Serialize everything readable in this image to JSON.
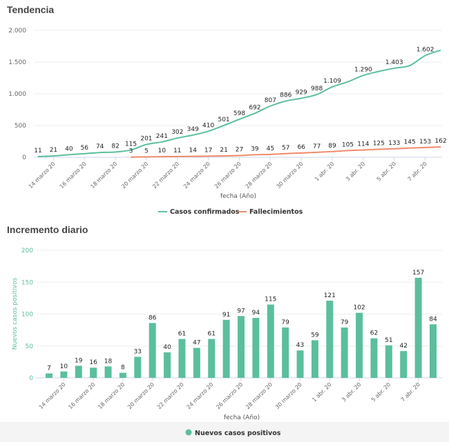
{
  "sections": {
    "trend_title": "Tendencia",
    "daily_title": "Incremento diario"
  },
  "colors": {
    "confirmed": "#5bbf9c",
    "deaths": "#f08a6a",
    "bars": "#5bbf9c"
  },
  "chart_data": [
    {
      "type": "line",
      "title": "Tendencia",
      "xlabel": "fecha (Año)",
      "ylabel": "",
      "ylim": [
        0,
        2000
      ],
      "yticks": [
        "0",
        "500",
        "1.000",
        "1.500",
        "2.000"
      ],
      "ytick_values": [
        0,
        500,
        1000,
        1500,
        2000
      ],
      "x": [
        "13 marzo 20",
        "14 marzo 20",
        "15 marzo 20",
        "16 marzo 20",
        "17 marzo 20",
        "18 marzo 20",
        "19 marzo 20",
        "20 marzo 20",
        "21 marzo 20",
        "22 marzo 20",
        "23 marzo 20",
        "24 marzo 20",
        "25 marzo 20",
        "26 marzo 20",
        "27 marzo 20",
        "28 marzo 20",
        "29 marzo 20",
        "30 marzo 20",
        "31 marzo 20",
        "1 abr. 20",
        "2 abr. 20",
        "3 abr. 20",
        "4 abr. 20",
        "5 abr. 20",
        "6 abr. 20",
        "7 abr. 20",
        "8 abr. 20"
      ],
      "xtick_labels": [
        "14 marzo 20",
        "16 marzo 20",
        "18 marzo 20",
        "20 marzo 20",
        "22 marzo 20",
        "24 marzo 20",
        "26 marzo 20",
        "28 marzo 20",
        "30 marzo 20",
        "1 abr. 20",
        "3 abr. 20",
        "5 abr. 20",
        "7 abr. 20"
      ],
      "grid": true,
      "legend_position": "bottom",
      "series": [
        {
          "name": "Casos confirmados",
          "values": [
            11,
            21,
            40,
            56,
            74,
            82,
            115,
            201,
            241,
            302,
            349,
            410,
            501,
            598,
            692,
            807,
            886,
            929,
            988,
            1109,
            1188,
            1290,
            1352,
            1403,
            1445,
            1602,
            1686
          ],
          "labels": [
            "11",
            "21",
            "40",
            "56",
            "74",
            "82",
            "115",
            "201",
            "241",
            "302",
            "349",
            "410",
            "501",
            "598",
            "692",
            "807",
            "886",
            "929",
            "988",
            "1.109",
            "",
            "1.290",
            "",
            "1.403",
            "",
            "1.602",
            ""
          ]
        },
        {
          "name": "Fallecimientos",
          "values": [
            null,
            null,
            null,
            null,
            null,
            null,
            3,
            5,
            10,
            11,
            14,
            17,
            21,
            27,
            39,
            45,
            57,
            66,
            77,
            89,
            105,
            114,
            125,
            133,
            145,
            153,
            162
          ],
          "labels": [
            "",
            "",
            "",
            "",
            "",
            "",
            "3",
            "5",
            "10",
            "11",
            "14",
            "17",
            "21",
            "27",
            "39",
            "45",
            "57",
            "66",
            "77",
            "89",
            "105",
            "114",
            "125",
            "133",
            "145",
            "153",
            "162"
          ]
        }
      ]
    },
    {
      "type": "bar",
      "title": "Incremento diario",
      "xlabel": "fecha (Año)",
      "ylabel": "Nuevos casos positivos",
      "ylim": [
        0,
        200
      ],
      "yticks": [
        "0",
        "50",
        "100",
        "150",
        "200"
      ],
      "ytick_values": [
        0,
        50,
        100,
        150,
        200
      ],
      "categories": [
        "13 marzo 20",
        "14 marzo 20",
        "15 marzo 20",
        "16 marzo 20",
        "17 marzo 20",
        "18 marzo 20",
        "19 marzo 20",
        "20 marzo 20",
        "21 marzo 20",
        "22 marzo 20",
        "23 marzo 20",
        "24 marzo 20",
        "25 marzo 20",
        "26 marzo 20",
        "27 marzo 20",
        "28 marzo 20",
        "29 marzo 20",
        "30 marzo 20",
        "31 marzo 20",
        "1 abr. 20",
        "2 abr. 20",
        "3 abr. 20",
        "4 abr. 20",
        "5 abr. 20",
        "6 abr. 20",
        "7 abr. 20",
        "8 abr. 20"
      ],
      "xtick_labels": [
        "14 marzo 20",
        "16 marzo 20",
        "18 marzo 20",
        "20 marzo 20",
        "22 marzo 20",
        "24 marzo 20",
        "26 marzo 20",
        "28 marzo 20",
        "30 marzo 20",
        "1 abr. 20",
        "3 abr. 20",
        "5 abr. 20",
        "7 abr. 20"
      ],
      "grid": true,
      "legend_position": "bottom",
      "series": [
        {
          "name": "Nuevos casos positivos",
          "values": [
            7,
            10,
            19,
            16,
            18,
            8,
            33,
            86,
            40,
            61,
            47,
            61,
            91,
            97,
            94,
            115,
            79,
            43,
            59,
            121,
            79,
            102,
            62,
            51,
            42,
            157,
            84
          ]
        }
      ]
    }
  ]
}
